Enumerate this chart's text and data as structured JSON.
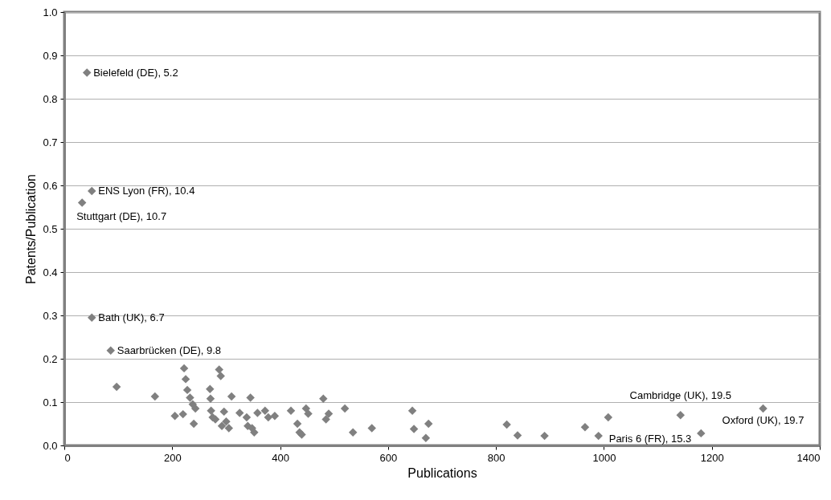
{
  "chart_data": {
    "type": "scatter",
    "xlabel": "Publications",
    "ylabel": "Patents/Publication",
    "marker": "diamond",
    "grid": "y",
    "x": [
      42,
      51,
      33,
      51,
      86,
      97,
      168,
      205,
      220,
      222,
      225,
      228,
      233,
      238,
      240,
      243,
      270,
      271,
      272,
      275,
      280,
      287,
      290,
      292,
      296,
      300,
      305,
      310,
      325,
      338,
      340,
      345,
      348,
      352,
      358,
      372,
      378,
      390,
      420,
      432,
      436,
      440,
      448,
      452,
      480,
      485,
      490,
      520,
      535,
      570,
      645,
      648,
      670,
      675,
      820,
      840,
      890,
      965,
      990,
      1008,
      1142,
      1180,
      1295
    ],
    "series": [
      {
        "color": "#808080",
        "values": [
          0.86,
          0.587,
          0.56,
          0.295,
          0.219,
          0.135,
          0.113,
          0.068,
          0.072,
          0.178,
          0.153,
          0.128,
          0.11,
          0.095,
          0.05,
          0.085,
          0.13,
          0.108,
          0.08,
          0.065,
          0.06,
          0.175,
          0.16,
          0.045,
          0.078,
          0.055,
          0.04,
          0.113,
          0.075,
          0.065,
          0.045,
          0.11,
          0.04,
          0.03,
          0.075,
          0.08,
          0.065,
          0.068,
          0.08,
          0.05,
          0.03,
          0.025,
          0.085,
          0.073,
          0.108,
          0.06,
          0.073,
          0.085,
          0.03,
          0.04,
          0.08,
          0.038,
          0.017,
          0.05,
          0.048,
          0.023,
          0.022,
          0.042,
          0.022,
          0.065,
          0.07,
          0.028,
          0.085
        ]
      }
    ],
    "annotations": [
      {
        "text": "Bielefeld (DE), 5.2",
        "x": 42,
        "y": 0.86
      },
      {
        "text": "ENS Lyon (FR), 10.4",
        "x": 51,
        "y": 0.587
      },
      {
        "text": "Stuttgart (DE), 10.7",
        "x": 33,
        "y": 0.56
      },
      {
        "text": "Bath (UK), 6.7",
        "x": 51,
        "y": 0.295
      },
      {
        "text": "Saarbrücken (DE), 9.8",
        "x": 86,
        "y": 0.219
      },
      {
        "text": "Cambridge (UK), 19.5",
        "x": 1142,
        "y": 0.07
      },
      {
        "text": "Oxford (UK), 19.7",
        "x": 1295,
        "y": 0.085
      },
      {
        "text": "Paris 6 (FR), 15.3",
        "x": 990,
        "y": 0.022
      }
    ],
    "xlim": [
      0,
      1400
    ],
    "xticks": [
      0,
      200,
      400,
      600,
      800,
      1000,
      1200,
      1400
    ],
    "ylim": [
      0,
      1
    ],
    "yticks": [
      {
        "value": 0,
        "label": "0.0"
      },
      {
        "value": 0.1,
        "label": "0.1"
      },
      {
        "value": 0.2,
        "label": "0.2"
      },
      {
        "value": 0.3,
        "label": "0.3"
      },
      {
        "value": 0.4,
        "label": "0.4"
      },
      {
        "value": 0.5,
        "label": "0.5"
      },
      {
        "value": 0.6,
        "label": "0.6"
      },
      {
        "value": 0.7,
        "label": "0.7"
      },
      {
        "value": 0.8,
        "label": "0.8"
      },
      {
        "value": 0.9,
        "label": "0.9"
      },
      {
        "value": 1,
        "label": "1.0"
      }
    ]
  }
}
